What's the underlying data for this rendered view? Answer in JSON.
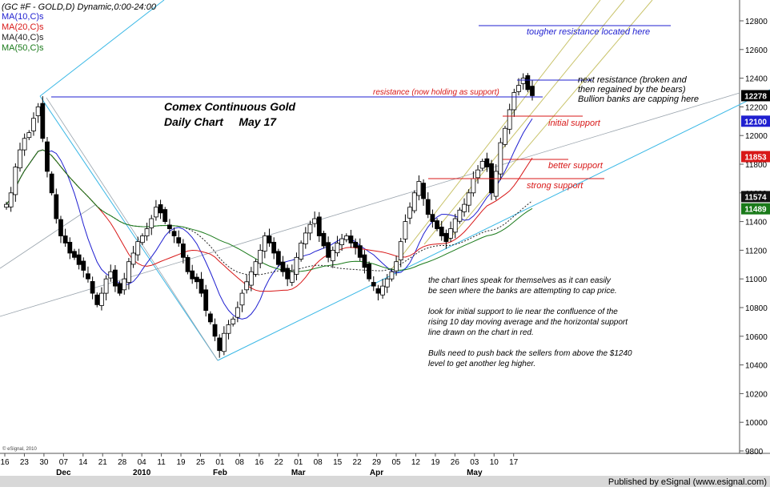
{
  "chart_data": {
    "type": "candlestick",
    "title": "Comex Continuous Gold",
    "subtitle": "Daily Chart     May 17",
    "header": "(GC #F - GOLD,D) Dynamic,0:00-24:00",
    "legend": [
      {
        "label": "MA(10,C)s",
        "color": "#1f1fd0"
      },
      {
        "label": "MA(20,C)s",
        "color": "#d81818"
      },
      {
        "label": "MA(40,C)s",
        "color": "#222222"
      },
      {
        "label": "MA(50,C)s",
        "color": "#1a7a1a"
      }
    ],
    "y_ticks": [
      9800,
      10000,
      10200,
      10400,
      10600,
      10800,
      11000,
      11200,
      11400,
      11600,
      11800,
      12000,
      12200,
      12400,
      12600,
      12800
    ],
    "ylim": [
      9750,
      12950
    ],
    "x_tick_labels": [
      "16",
      "23",
      "30",
      "07",
      "14",
      "21",
      "28",
      "04",
      "11",
      "19",
      "25",
      "01",
      "08",
      "16",
      "22",
      "01",
      "08",
      "15",
      "22",
      "29",
      "05",
      "12",
      "19",
      "26",
      "03",
      "10",
      "17"
    ],
    "month_labels": [
      {
        "label": "Dec",
        "tick": 3
      },
      {
        "label": "2010",
        "tick": 7
      },
      {
        "label": "Feb",
        "tick": 11
      },
      {
        "label": "Mar",
        "tick": 15
      },
      {
        "label": "Apr",
        "tick": 19
      },
      {
        "label": "May",
        "tick": 24
      }
    ],
    "price_tags": [
      {
        "value": 12278,
        "label": "12278",
        "bg": "#000000",
        "fg": "#ffffff"
      },
      {
        "value": 12100,
        "label": "12100",
        "bg": "#1f1fd0",
        "fg": "#ffffff"
      },
      {
        "value": 11853,
        "label": "11853",
        "bg": "#d81818",
        "fg": "#ffffff"
      },
      {
        "value": 11574,
        "label": "11574",
        "bg": "#111111",
        "fg": "#ffffff"
      },
      {
        "value": 11489,
        "label": "11489",
        "bg": "#1a7a1a",
        "fg": "#ffffff"
      }
    ],
    "closes": [
      11520,
      11600,
      11780,
      11900,
      11980,
      12020,
      12120,
      12200,
      11980,
      11750,
      11600,
      11420,
      11300,
      11250,
      11180,
      11150,
      11100,
      11060,
      11000,
      10900,
      10820,
      10900,
      11000,
      11050,
      10950,
      10900,
      11000,
      11120,
      11180,
      11260,
      11300,
      11350,
      11420,
      11500,
      11460,
      11400,
      11350,
      11300,
      11250,
      11150,
      11050,
      11000,
      10980,
      10900,
      10780,
      10700,
      10600,
      10500,
      10620,
      10680,
      10720,
      10800,
      10900,
      10980,
      11050,
      11120,
      11200,
      11300,
      11250,
      11180,
      11100,
      11050,
      11000,
      11050,
      11150,
      11250,
      11320,
      11380,
      11420,
      11300,
      11230,
      11150,
      11200,
      11250,
      11280,
      11300,
      11250,
      11220,
      11150,
      11080,
      11000,
      10950,
      10900,
      10950,
      11000,
      11050,
      11120,
      11260,
      11400,
      11500,
      11600,
      11680,
      11560,
      11450,
      11400,
      11350,
      11300,
      11260,
      11350,
      11420,
      11480,
      11520,
      11600,
      11700,
      11760,
      11820,
      11780,
      11600,
      11750,
      11950,
      12050,
      12180,
      12300,
      12350,
      12400,
      12320,
      12278
    ],
    "annotations": [
      {
        "text": "tougher resistance located here",
        "color": "#1f1fd0"
      },
      {
        "text": "resistance (now holding as support)",
        "color": "#d81818"
      },
      {
        "text": "next resistance (broken and",
        "color": "#000000"
      },
      {
        "text": "then regained by the bears)",
        "color": "#000000"
      },
      {
        "text": "Bullion banks are capping here",
        "color": "#000000"
      },
      {
        "text": "initial support",
        "color": "#d81818"
      },
      {
        "text": "better support",
        "color": "#d81818"
      },
      {
        "text": "strong support",
        "color": "#d81818"
      }
    ],
    "commentary": [
      "the chart lines speak for themselves as it can easily",
      "be seen where the banks are attempting to cap price.",
      "",
      "look for initial support to lie near the confluence of the",
      "rising 10 day moving average and the horizontal support",
      "line drawn on the chart in red.",
      "",
      "Bulls need to push back the sellers from above the $1240",
      "level to get another leg higher."
    ],
    "copyright": "© eSignal, 2010",
    "footer": "Published by eSignal (www.esignal.com)",
    "grid": false
  }
}
